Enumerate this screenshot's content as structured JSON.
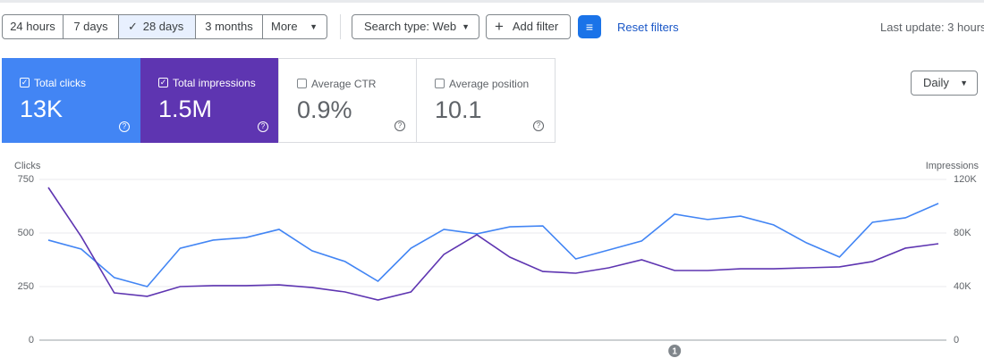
{
  "toolbar": {
    "date_ranges": [
      "24 hours",
      "7 days",
      "28 days",
      "3 months",
      "More"
    ],
    "search_type": "Search type: Web",
    "add_filter": "Add filter",
    "reset_filters": "Reset filters",
    "last_update": "Last update: 3 hours"
  },
  "metrics": [
    {
      "label": "Total clicks",
      "value": "13K"
    },
    {
      "label": "Total impressions",
      "value": "1.5M"
    },
    {
      "label": "Average CTR",
      "value": "0.9%"
    },
    {
      "label": "Average position",
      "value": "10.1"
    }
  ],
  "granularity": "Daily",
  "chart_data": {
    "type": "line",
    "y_label": "Clicks",
    "y2_label": "Impressions",
    "categories": [
      null,
      null,
      null,
      null,
      null,
      null,
      null,
      null,
      null,
      null,
      null,
      null,
      null,
      null,
      null,
      null,
      null,
      null,
      null,
      null,
      null,
      null,
      null,
      null,
      null,
      null,
      null,
      null
    ],
    "series": [
      {
        "color": "#4285f4",
        "axis": "y",
        "values": [
          467,
          425,
          292,
          250,
          429,
          467,
          479,
          517,
          417,
          367,
          275,
          429,
          517,
          496,
          529,
          533,
          379,
          421,
          463,
          588,
          563,
          579,
          538,
          454,
          388,
          550,
          571,
          638
        ]
      },
      {
        "color": "#5e35b1",
        "axis": "y2",
        "values": [
          114000,
          77300,
          35300,
          32700,
          40000,
          40700,
          40700,
          41300,
          39300,
          36000,
          30000,
          36000,
          64000,
          78700,
          62000,
          51300,
          50000,
          54000,
          60000,
          52000,
          52000,
          53300,
          53300,
          54000,
          54700,
          58700,
          68700,
          72000
        ]
      }
    ],
    "ylim": [
      0,
      750
    ],
    "yticks": [
      0,
      250,
      500,
      750
    ],
    "y2lim": [
      0,
      120000
    ],
    "y2ticks": [
      {
        "value": 0,
        "label": "0"
      },
      {
        "value": 40000,
        "label": "40K"
      },
      {
        "value": 80000,
        "label": "80K"
      },
      {
        "value": 120000,
        "label": "120K"
      }
    ],
    "grid": true,
    "annotations": [
      {
        "text": "1",
        "category_index": 19
      }
    ]
  }
}
